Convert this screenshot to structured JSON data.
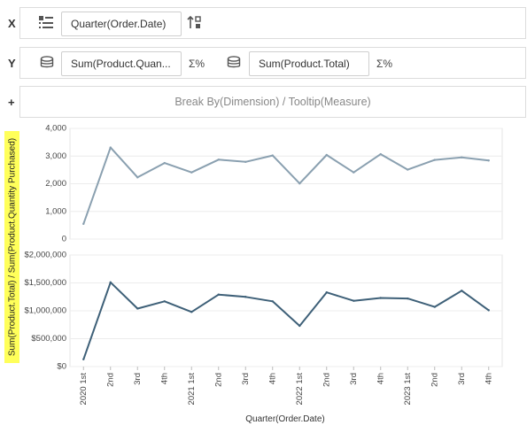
{
  "shelves": {
    "x": {
      "letter": "X",
      "sort_icon": "list-sort-icon",
      "field": "Quarter(Order.Date)",
      "order_icon": "sort-order-icon"
    },
    "y": {
      "letter": "Y",
      "measure1": {
        "icon": "database-icon",
        "field": "Sum(Product.Quan...",
        "agg_icon": "sigma-percent-icon",
        "agg_label": "Σ%"
      },
      "measure2": {
        "icon": "database-icon",
        "field": "Sum(Product.Total)",
        "agg_icon": "sigma-percent-icon",
        "agg_label": "Σ%"
      }
    },
    "plus": {
      "letter": "+",
      "placeholder": "Break By(Dimension) / Tooltip(Measure)"
    }
  },
  "chart_data": {
    "type": "line",
    "ylabel": "Sum(Product.Total) / Sum(Product.Quantity Purchased)",
    "xlabel": "Quarter(Order.Date)",
    "categories": [
      "2020 1st",
      "2nd",
      "3rd",
      "4th",
      "2021 1st",
      "2nd",
      "3rd",
      "4th",
      "2022 1st",
      "2nd",
      "3rd",
      "4th",
      "2023 1st",
      "2nd",
      "3rd",
      "4th"
    ],
    "grid": true,
    "panels": [
      {
        "color": "#8aa0b0",
        "ylim": [
          0,
          4000
        ],
        "ticks": [
          0,
          1000,
          2000,
          3000,
          4000
        ],
        "tick_labels": [
          "0",
          "1,000",
          "2,000",
          "3,000",
          "4,000"
        ],
        "values": [
          550,
          3310,
          2230,
          2750,
          2410,
          2870,
          2790,
          3020,
          2010,
          3040,
          2410,
          3070,
          2510,
          2860,
          2950,
          2840
        ]
      },
      {
        "color": "#3e6078",
        "ylim": [
          0,
          2000000
        ],
        "ticks": [
          0,
          500000,
          1000000,
          1500000,
          2000000
        ],
        "tick_labels": [
          "$0",
          "$500,000",
          "$1,000,000",
          "$1,500,000",
          "$2,000,000"
        ],
        "values": [
          130000,
          1510000,
          1040000,
          1170000,
          980000,
          1290000,
          1250000,
          1170000,
          730000,
          1330000,
          1180000,
          1230000,
          1220000,
          1070000,
          1360000,
          1010000
        ]
      }
    ]
  }
}
